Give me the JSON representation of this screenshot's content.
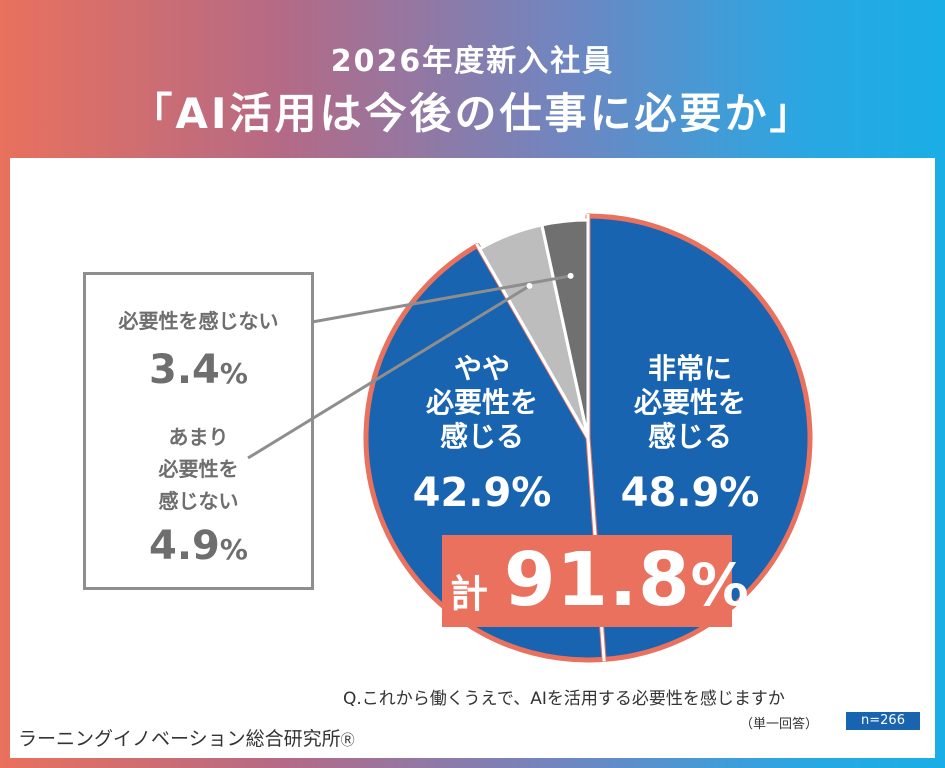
{
  "header": {
    "line1": "2026年度新入社員",
    "line2": "「AI活用は今後の仕事に必要か」"
  },
  "chart_data": {
    "type": "pie",
    "slices": [
      {
        "name": "非常に必要性を感じる",
        "label_lines": [
          "非常に",
          "必要性を",
          "感じる"
        ],
        "value": 48.9,
        "color": "#1864b0"
      },
      {
        "name": "やや必要性を感じる",
        "label_lines": [
          "やや",
          "必要性を",
          "感じる"
        ],
        "value": 42.9,
        "color": "#1864b0"
      },
      {
        "name": "あまり必要性を感じない",
        "label_lines": [
          "あまり",
          "必要性を",
          "感じない"
        ],
        "value": 4.9,
        "color": "#bdbdbd"
      },
      {
        "name": "必要性を感じない",
        "label_lines": [
          "必要性を感じない"
        ],
        "value": 3.4,
        "color": "#707070"
      }
    ],
    "highlight_outline_color": "#e9715d",
    "total": {
      "prefix": "計",
      "value": 91.8
    }
  },
  "legend": {
    "not_needed": {
      "label": "必要性を感じない",
      "value": "3.4",
      "unit": "%"
    },
    "not_very": {
      "label_lines": [
        "あまり",
        "必要性を",
        "感じない"
      ],
      "value": "4.9",
      "unit": "%"
    }
  },
  "question": "Q.これから働くうえで、AIを活用する必要性を感じますか",
  "response_type": "（単一回答）",
  "sample": "n=266",
  "organization": "ラーニングイノベーション総合研究所",
  "registered_mark": "Ⓡ",
  "colors": {
    "blue": "#1864b0",
    "coral": "#e9715d",
    "light_gray": "#bdbdbd",
    "dark_gray": "#707070"
  }
}
